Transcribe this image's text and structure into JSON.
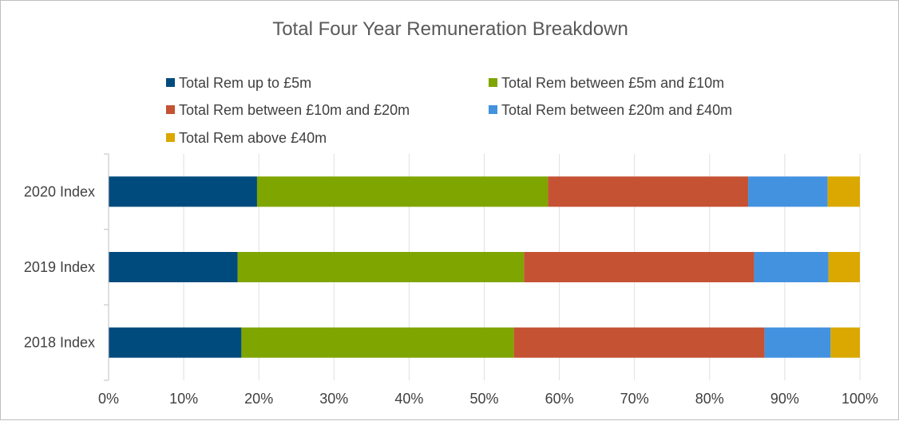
{
  "chart_data": {
    "type": "bar",
    "orientation": "horizontal",
    "stacked": "100%",
    "title": "Total Four Year Remuneration Breakdown",
    "categories": [
      "2020 Index",
      "2019 Index",
      "2018 Index"
    ],
    "series": [
      {
        "name": "Total Rem up to £5m",
        "color": "#004b7d",
        "values": [
          19.8,
          17.2,
          17.7
        ]
      },
      {
        "name": "Total Rem between £5m and £10m",
        "color": "#7fa500",
        "values": [
          38.8,
          38.2,
          36.3
        ]
      },
      {
        "name": "Total Rem between £10m and £20m",
        "color": "#c55233",
        "values": [
          26.7,
          30.7,
          33.4
        ]
      },
      {
        "name": "Total Rem between £20m and £40m",
        "color": "#4392e0",
        "values": [
          10.6,
          9.9,
          8.8
        ]
      },
      {
        "name": "Total Rem above £40m",
        "color": "#daa800",
        "values": [
          4.3,
          4.2,
          3.9
        ]
      }
    ],
    "x_ticks": [
      "0%",
      "10%",
      "20%",
      "30%",
      "40%",
      "50%",
      "60%",
      "70%",
      "80%",
      "90%",
      "100%"
    ],
    "xlim": [
      0,
      100
    ],
    "grid": true,
    "legend_position": "top"
  }
}
